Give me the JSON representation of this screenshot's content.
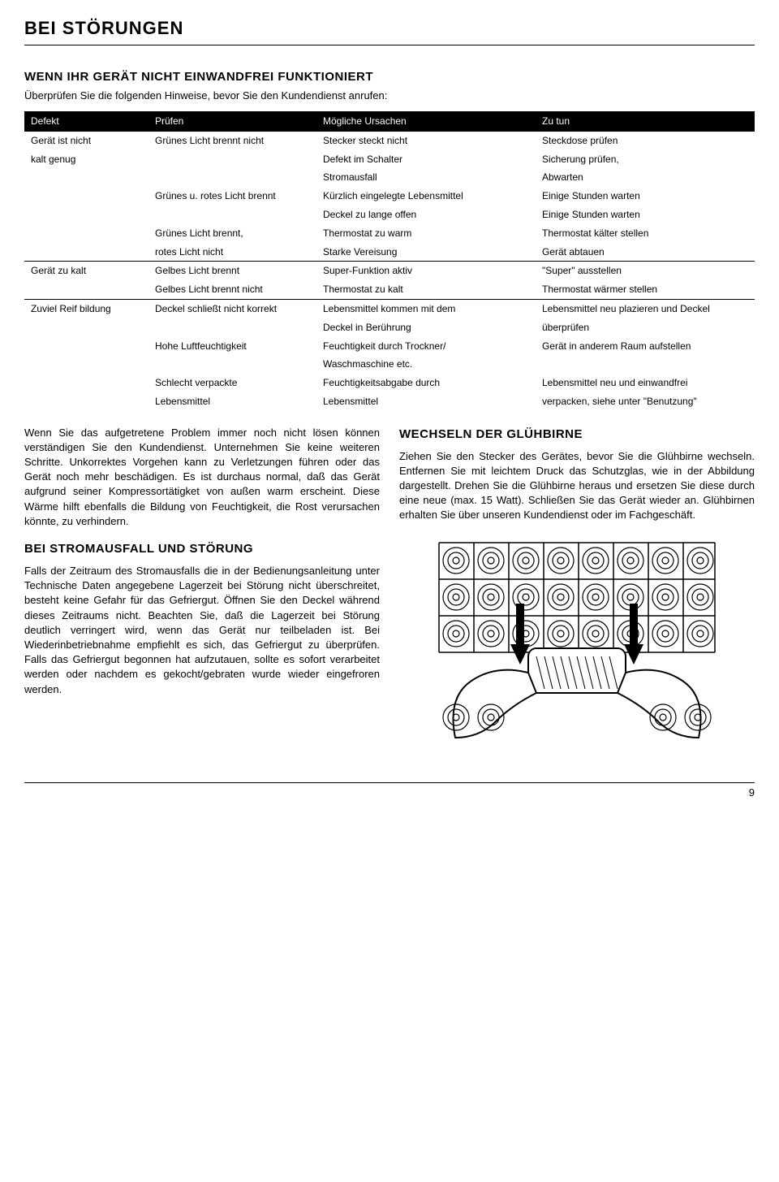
{
  "section_title": "BEI STÖRUNGEN",
  "heading1": "WENN IHR GERÄT NICHT EINWANDFREI FUNKTIONIERT",
  "heading1_sub": "Überprüfen Sie die folgenden Hinweise, bevor Sie den Kundendienst anrufen:",
  "table": {
    "headers": [
      "Defekt",
      "Prüfen",
      "Mögliche Ursachen",
      "Zu tun"
    ],
    "rows": [
      {
        "sep": false,
        "c0": "Gerät ist nicht",
        "c1": "Grünes Licht brennt nicht",
        "c2": "Stecker steckt nicht",
        "c3": "Steckdose prüfen"
      },
      {
        "sep": false,
        "c0": "kalt genug",
        "c1": "",
        "c2": "Defekt im Schalter",
        "c3": "Sicherung prüfen,"
      },
      {
        "sep": false,
        "c0": "",
        "c1": "",
        "c2": "Stromausfall",
        "c3": "Abwarten"
      },
      {
        "sep": false,
        "c0": "",
        "c1": "Grünes u. rotes Licht brennt",
        "c2": "Kürzlich eingelegte Lebensmittel",
        "c3": "Einige Stunden warten"
      },
      {
        "sep": false,
        "c0": "",
        "c1": "",
        "c2": "Deckel zu lange offen",
        "c3": "Einige Stunden warten"
      },
      {
        "sep": false,
        "c0": "",
        "c1": "Grünes Licht brennt,",
        "c2": "Thermostat zu warm",
        "c3": "Thermostat kälter stellen"
      },
      {
        "sep": false,
        "c0": "",
        "c1": "rotes Licht nicht",
        "c2": "Starke Vereisung",
        "c3": "Gerät abtauen"
      },
      {
        "sep": true,
        "c0": "Gerät zu kalt",
        "c1": "Gelbes Licht brennt",
        "c2": "Super-Funktion aktiv",
        "c3": "\"Super\" ausstellen"
      },
      {
        "sep": false,
        "c0": "",
        "c1": "Gelbes Licht brennt nicht",
        "c2": "Thermostat zu kalt",
        "c3": "Thermostat wärmer stellen"
      },
      {
        "sep": true,
        "c0": "Zuviel Reif bildung",
        "c1": "Deckel schließt nicht korrekt",
        "c2": "Lebensmittel kommen mit dem",
        "c3": "Lebensmittel neu plazieren und Deckel"
      },
      {
        "sep": false,
        "c0": "",
        "c1": "",
        "c2": "Deckel in Berührung",
        "c3": "überprüfen"
      },
      {
        "sep": false,
        "c0": "",
        "c1": "Hohe Luftfeuchtigkeit",
        "c2": "Feuchtigkeit durch Trockner/",
        "c3": "Gerät in anderem Raum aufstellen"
      },
      {
        "sep": false,
        "c0": "",
        "c1": "",
        "c2": "Waschmaschine etc.",
        "c3": ""
      },
      {
        "sep": false,
        "c0": "",
        "c1": "Schlecht verpackte",
        "c2": "Feuchtigkeitsabgabe durch",
        "c3": "Lebensmittel neu und einwandfrei"
      },
      {
        "sep": false,
        "c0": "",
        "c1": "Lebensmittel",
        "c2": "Lebensmittel",
        "c3": "verpacken, siehe unter \"Benutzung\""
      }
    ]
  },
  "left_col": {
    "para1": "Wenn Sie das aufgetretene Problem immer noch nicht lösen können verständigen Sie den Kundendienst. Unternehmen Sie keine weiteren Schritte. Unkorrektes Vorgehen kann zu Verletzungen führen oder das Gerät noch mehr beschädigen. Es ist durchaus normal, daß das Gerät aufgrund seiner Kompressortätigket von außen warm erscheint. Diese Wärme hilft ebenfalls die Bildung von Feuchtigkeit, die Rost verursachen könnte, zu verhindern.",
    "heading": "BEI STROMAUSFALL UND STÖRUNG",
    "para2": "Falls der Zeitraum des Stromausfalls die in der Bedienungsanleitung unter Technische Daten angegebene Lagerzeit bei Störung nicht überschreitet, besteht keine Gefahr für das Gefriergut. Öffnen Sie den Deckel während dieses Zeitraums nicht. Beachten Sie, daß die Lagerzeit bei Störung deutlich verringert wird, wenn das Gerät nur teilbeladen ist. Bei Wiederinbetriebnahme empfiehlt es sich, das Gefriergut zu überprüfen. Falls das Gefriergut begonnen hat aufzutauen, sollte es sofort verarbeitet werden oder nachdem es gekocht/gebraten wurde wieder eingefroren werden."
  },
  "right_col": {
    "heading": "WECHSELN DER GLÜHBIRNE",
    "para": "Ziehen Sie den Stecker des Gerätes, bevor Sie die Glühbirne wechseln. Entfernen Sie mit leichtem Druck das Schutzglas, wie in der Abbildung dargestellt. Drehen Sie die Glühbirne heraus und ersetzen Sie diese durch eine neue (max. 15 Watt). Schließen Sie das Gerät wieder an. Glühbirnen erhalten Sie über unseren Kundendienst oder im Fachgeschäft."
  },
  "page_number": "9"
}
